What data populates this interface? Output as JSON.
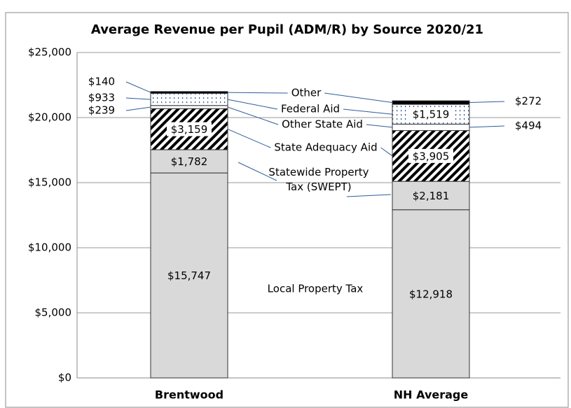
{
  "chart_data": {
    "type": "stacked_bar",
    "title": "Average Revenue per Pupil (ADM/R) by Source 2020/21",
    "categories": [
      "Brentwood",
      "NH Average"
    ],
    "series": [
      {
        "name": "Local Property Tax",
        "color": "#d9d9d9",
        "values": [
          15747,
          12918
        ],
        "value_labels": [
          "$15,747",
          "$12,918"
        ]
      },
      {
        "name": "Statewide Property Tax (SWEPT)",
        "color": "#d9d9d9",
        "values": [
          1782,
          2181
        ],
        "value_labels": [
          "$1,782",
          "$2,181"
        ]
      },
      {
        "name": "State Adequacy Aid",
        "color": "#000000",
        "pattern": "diagonal",
        "values": [
          3159,
          3905
        ],
        "value_labels": [
          "$3,159",
          "$3,905"
        ]
      },
      {
        "name": "Other State Aid",
        "color": "#ffffff",
        "values": [
          239,
          494
        ],
        "value_labels": [
          "$239",
          "$494"
        ]
      },
      {
        "name": "Federal Aid",
        "color": "#2e5c9a",
        "pattern": "dots",
        "values": [
          933,
          1519
        ],
        "value_labels": [
          "$933",
          "$1,519"
        ]
      },
      {
        "name": "Other",
        "color": "#000000",
        "values": [
          140,
          272
        ],
        "value_labels": [
          "$140",
          "$272"
        ]
      }
    ],
    "ylim": [
      0,
      25000
    ],
    "yticks": [
      {
        "value": 0,
        "label": "$0"
      },
      {
        "value": 5000,
        "label": "$5,000"
      },
      {
        "value": 10000,
        "label": "$10,000"
      },
      {
        "value": 15000,
        "label": "$15,000"
      },
      {
        "value": 20000,
        "label": "$20,000"
      },
      {
        "value": 25000,
        "label": "$25,000"
      }
    ],
    "grid": true
  }
}
